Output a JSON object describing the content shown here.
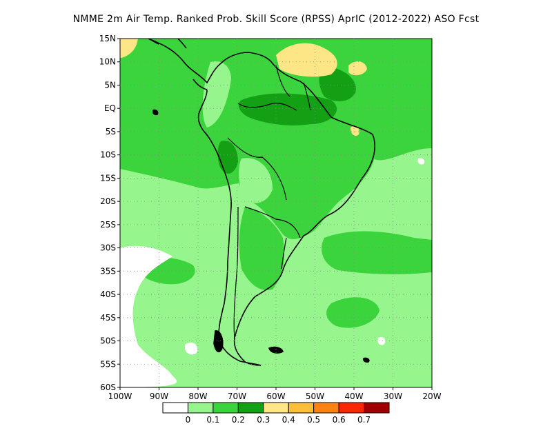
{
  "title": "NMME  2m Air Temp. Ranked Prob. Skill Score (RPSS) AprIC (2012-2022) ASO Fcst",
  "map": {
    "lat_labels": [
      "15N",
      "10N",
      "5N",
      "EQ",
      "5S",
      "10S",
      "15S",
      "20S",
      "25S",
      "30S",
      "35S",
      "40S",
      "45S",
      "50S",
      "55S",
      "60S"
    ],
    "lon_labels": [
      "100W",
      "90W",
      "80W",
      "70W",
      "60W",
      "50W",
      "40W",
      "30W",
      "20W"
    ],
    "lat_range": [
      -60,
      15
    ],
    "lon_range": [
      -100,
      -20
    ],
    "grid": "dotted",
    "colors": {
      "c0": "#ffffff",
      "c01": "#96f58c",
      "c02": "#3cd43c",
      "c03": "#14a014",
      "c04": "#fde685",
      "c05": "#fdbe3c",
      "c06": "#fe8214",
      "c07": "#fa2800",
      "c08": "#e61400",
      "c09": "#a00000",
      "coast": "#000000"
    }
  },
  "colorbar": {
    "labels": [
      "0",
      "0.1",
      "0.2",
      "0.3",
      "0.4",
      "0.5",
      "0.6",
      "0.7"
    ],
    "colors": [
      "#ffffff",
      "#96f58c",
      "#3cd43c",
      "#14a014",
      "#fde685",
      "#fdbe3c",
      "#fe8214",
      "#fa2800",
      "#a00000"
    ]
  }
}
